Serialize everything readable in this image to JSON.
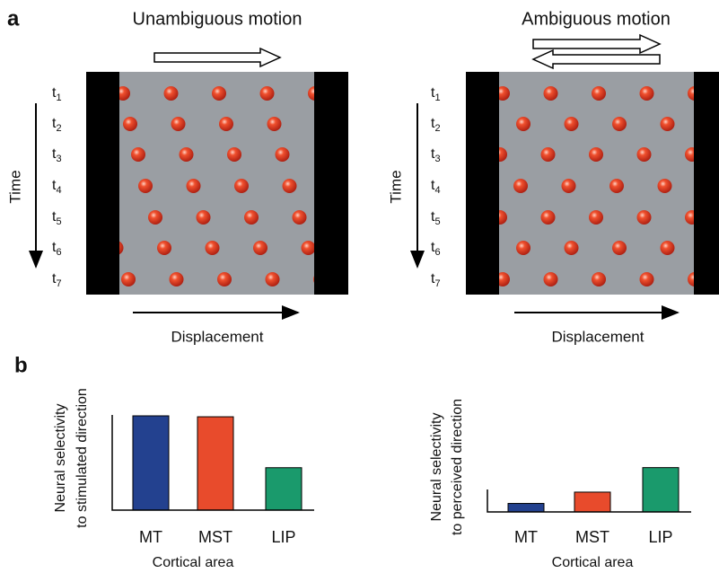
{
  "panel_a": {
    "label": "a",
    "left": {
      "title": "Unambiguous motion",
      "time_label": "Time",
      "x_label": "Displacement",
      "time_symbol": "t",
      "time_steps": [
        "1",
        "2",
        "3",
        "4",
        "5",
        "6",
        "7"
      ]
    },
    "right": {
      "title": "Ambiguous motion",
      "time_label": "Time",
      "x_label": "Displacement",
      "time_symbol": "t",
      "time_steps": [
        "1",
        "2",
        "3",
        "4",
        "5",
        "6",
        "7"
      ]
    }
  },
  "panel_b": {
    "label": "b",
    "chart_data": [
      {
        "type": "bar",
        "y_label": [
          "Neural selectivity",
          "to stimulated direction"
        ],
        "x_label": "Cortical area",
        "categories": [
          "MT",
          "MST",
          "LIP"
        ],
        "values": [
          100,
          99,
          45
        ],
        "colors": [
          "#23418f",
          "#e84b2c",
          "#1a9a6c"
        ]
      },
      {
        "type": "bar",
        "y_label": [
          "Neural selectivity",
          "to perceived direction"
        ],
        "x_label": "Cortical area",
        "categories": [
          "MT",
          "MST",
          "LIP"
        ],
        "values": [
          9,
          21,
          47
        ],
        "colors": [
          "#23418f",
          "#e84b2c",
          "#1a9a6c"
        ]
      }
    ]
  }
}
